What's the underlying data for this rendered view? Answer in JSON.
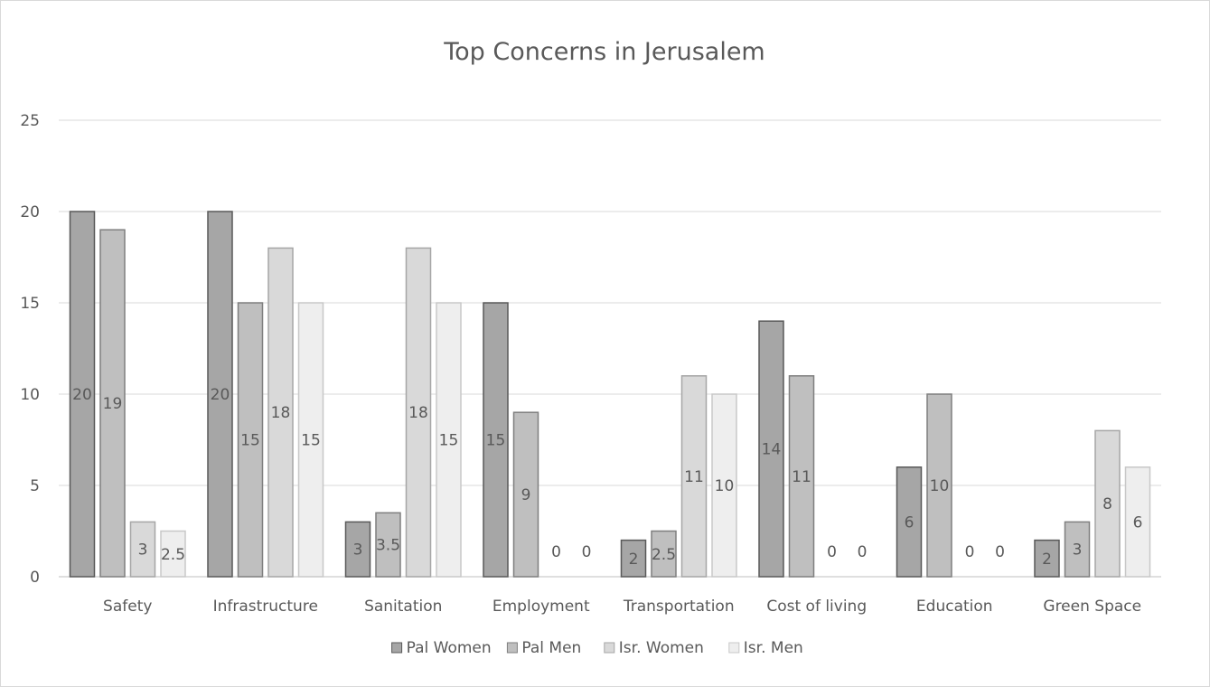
{
  "chart_data": {
    "type": "bar",
    "title": "Top Concerns in Jerusalem",
    "xlabel": "",
    "ylabel": "",
    "ylim": [
      0,
      25
    ],
    "yticks": [
      0,
      5,
      10,
      15,
      20,
      25
    ],
    "grid": true,
    "legend_position": "bottom",
    "categories": [
      "Safety",
      "Infrastructure",
      "Sanitation",
      "Employment",
      "Transportation",
      "Cost of living",
      "Education",
      "Green Space"
    ],
    "series": [
      {
        "name": "Pal Women",
        "color": "#a6a6a6",
        "stroke": "#595959",
        "values": [
          20,
          20,
          3,
          15,
          2,
          14,
          6,
          2
        ],
        "labels": [
          "20",
          "20",
          "3",
          "15",
          "2",
          "14",
          "6",
          "2"
        ]
      },
      {
        "name": "Pal Men",
        "color": "#bfbfbf",
        "stroke": "#7f7f7f",
        "values": [
          19,
          15,
          3.5,
          9,
          2.5,
          11,
          10,
          3
        ],
        "labels": [
          "19",
          "15",
          "3.5",
          "9",
          "2.5",
          "11",
          "10",
          "3"
        ]
      },
      {
        "name": "Isr. Women",
        "color": "#d9d9d9",
        "stroke": "#a6a6a6",
        "values": [
          3,
          18,
          18,
          0,
          11,
          0,
          0,
          8
        ],
        "labels": [
          "3",
          "18",
          "18",
          "0",
          "11",
          "0",
          "0",
          "8"
        ]
      },
      {
        "name": "Isr. Men",
        "color": "#eeeeee",
        "stroke": "#c8c8c8",
        "values": [
          2.5,
          15,
          15,
          0,
          10,
          0,
          0,
          6
        ],
        "labels": [
          "2.5",
          "15",
          "15",
          "0",
          "10",
          "0",
          "0",
          "6"
        ]
      }
    ]
  }
}
